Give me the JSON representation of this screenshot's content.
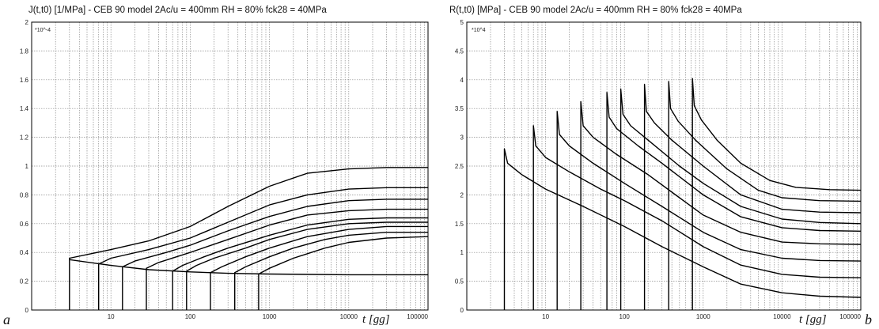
{
  "chart_data": [
    {
      "type": "line",
      "panel_label": "a",
      "title": "J(t,t0) [1/MPa] - CEB 90 model   2Ac/u = 400mm    RH = 80%    fck28 = 40MPa",
      "multiplier": "*10^-4",
      "xlabel": "t [gg]",
      "ylabel": "",
      "xscale": "log",
      "xlim": [
        1,
        100000
      ],
      "ylim": [
        0,
        2
      ],
      "xticks": [
        "10",
        "100",
        "1000",
        "10000",
        "100000"
      ],
      "yticks": [
        "0",
        "0.2",
        "0.4",
        "0.6",
        "0.8",
        "1",
        "1.2",
        "1.4",
        "1.6",
        "1.8",
        "2"
      ],
      "grid": true,
      "series": [
        {
          "t0": 3,
          "x": [
            3,
            10,
            30,
            100,
            300,
            1000,
            3000,
            10000,
            30000,
            100000
          ],
          "y": [
            0.36,
            0.42,
            0.48,
            0.58,
            0.72,
            0.86,
            0.95,
            0.98,
            0.99,
            0.99
          ]
        },
        {
          "t0": 7,
          "x": [
            7,
            10,
            30,
            100,
            300,
            1000,
            3000,
            10000,
            30000,
            100000
          ],
          "y": [
            0.32,
            0.36,
            0.42,
            0.5,
            0.61,
            0.73,
            0.8,
            0.84,
            0.85,
            0.85
          ]
        },
        {
          "t0": 14,
          "x": [
            14,
            20,
            50,
            100,
            300,
            1000,
            3000,
            10000,
            30000,
            100000
          ],
          "y": [
            0.3,
            0.34,
            0.4,
            0.45,
            0.55,
            0.65,
            0.72,
            0.76,
            0.77,
            0.77
          ]
        },
        {
          "t0": 28,
          "x": [
            28,
            40,
            100,
            300,
            1000,
            3000,
            10000,
            30000,
            100000
          ],
          "y": [
            0.29,
            0.33,
            0.4,
            0.49,
            0.59,
            0.66,
            0.69,
            0.7,
            0.7
          ]
        },
        {
          "t0": 60,
          "x": [
            60,
            80,
            150,
            300,
            1000,
            3000,
            10000,
            30000,
            100000
          ],
          "y": [
            0.27,
            0.31,
            0.37,
            0.43,
            0.52,
            0.59,
            0.63,
            0.64,
            0.64
          ]
        },
        {
          "t0": 90,
          "x": [
            90,
            120,
            200,
            500,
            1000,
            3000,
            10000,
            30000,
            100000
          ],
          "y": [
            0.27,
            0.31,
            0.36,
            0.43,
            0.49,
            0.56,
            0.6,
            0.61,
            0.61
          ]
        },
        {
          "t0": 180,
          "x": [
            180,
            250,
            500,
            1000,
            3000,
            10000,
            30000,
            100000
          ],
          "y": [
            0.26,
            0.3,
            0.37,
            0.43,
            0.51,
            0.56,
            0.58,
            0.58
          ]
        },
        {
          "t0": 365,
          "x": [
            365,
            500,
            1000,
            2000,
            5000,
            10000,
            30000,
            100000
          ],
          "y": [
            0.26,
            0.3,
            0.37,
            0.43,
            0.49,
            0.52,
            0.54,
            0.54
          ]
        },
        {
          "t0": 730,
          "x": [
            730,
            1000,
            2000,
            5000,
            10000,
            30000,
            100000
          ],
          "y": [
            0.25,
            0.29,
            0.36,
            0.43,
            0.47,
            0.5,
            0.51
          ]
        },
        {
          "name_hint": "instantaneous",
          "x": [
            3,
            10,
            30,
            100,
            300,
            1000,
            10000,
            100000
          ],
          "y": [
            0.35,
            0.31,
            0.28,
            0.265,
            0.255,
            0.25,
            0.245,
            0.245
          ]
        }
      ]
    },
    {
      "type": "line",
      "panel_label": "b",
      "title": "R(t,t0) [MPa]  - CEB 90 model    2Ac/u = 400mm     RH = 80%     fck28 = 40MPa",
      "multiplier": "*10^4",
      "xlabel": "t [gg]",
      "ylabel": "",
      "xscale": "log",
      "xlim": [
        1,
        100000
      ],
      "ylim": [
        0,
        5
      ],
      "xticks": [
        "10",
        "100",
        "1000",
        "10000",
        "100000"
      ],
      "yticks": [
        "0",
        "0.5",
        "1",
        "1.5",
        "2",
        "2.5",
        "3",
        "3.5",
        "4",
        "4.5",
        "5"
      ],
      "grid": true,
      "series": [
        {
          "t0": 3,
          "x": [
            3,
            3.3,
            5,
            10,
            30,
            100,
            300,
            1000,
            3000,
            10000,
            30000,
            100000
          ],
          "y": [
            2.8,
            2.55,
            2.35,
            2.1,
            1.8,
            1.45,
            1.1,
            0.75,
            0.45,
            0.3,
            0.24,
            0.22
          ]
        },
        {
          "t0": 7,
          "x": [
            7,
            7.5,
            10,
            20,
            50,
            100,
            300,
            1000,
            3000,
            10000,
            30000,
            100000
          ],
          "y": [
            3.2,
            2.85,
            2.65,
            2.4,
            2.1,
            1.9,
            1.55,
            1.1,
            0.78,
            0.62,
            0.57,
            0.56
          ]
        },
        {
          "t0": 14,
          "x": [
            14,
            15,
            20,
            40,
            100,
            300,
            1000,
            3000,
            10000,
            30000,
            100000
          ],
          "y": [
            3.45,
            3.05,
            2.85,
            2.55,
            2.2,
            1.8,
            1.35,
            1.05,
            0.9,
            0.86,
            0.85
          ]
        },
        {
          "t0": 28,
          "x": [
            28,
            30,
            40,
            80,
            200,
            500,
            1000,
            3000,
            10000,
            30000,
            100000
          ],
          "y": [
            3.62,
            3.2,
            3.0,
            2.7,
            2.35,
            1.95,
            1.65,
            1.35,
            1.18,
            1.15,
            1.14
          ]
        },
        {
          "t0": 60,
          "x": [
            60,
            64,
            80,
            150,
            300,
            1000,
            3000,
            10000,
            30000,
            100000
          ],
          "y": [
            3.78,
            3.35,
            3.15,
            2.85,
            2.55,
            2.0,
            1.62,
            1.43,
            1.38,
            1.37
          ]
        },
        {
          "t0": 90,
          "x": [
            90,
            96,
            120,
            200,
            500,
            1000,
            3000,
            10000,
            30000,
            100000
          ],
          "y": [
            3.84,
            3.4,
            3.2,
            2.95,
            2.5,
            2.2,
            1.8,
            1.58,
            1.52,
            1.5
          ]
        },
        {
          "t0": 180,
          "x": [
            180,
            190,
            240,
            400,
            1000,
            3000,
            10000,
            30000,
            100000
          ],
          "y": [
            3.92,
            3.45,
            3.25,
            2.95,
            2.5,
            2.0,
            1.75,
            1.7,
            1.69
          ]
        },
        {
          "t0": 365,
          "x": [
            365,
            385,
            480,
            800,
            2000,
            5000,
            10000,
            30000,
            100000
          ],
          "y": [
            3.97,
            3.5,
            3.28,
            2.95,
            2.45,
            2.08,
            1.95,
            1.9,
            1.89
          ]
        },
        {
          "t0": 730,
          "x": [
            730,
            770,
            950,
            1500,
            3000,
            7000,
            15000,
            40000,
            100000
          ],
          "y": [
            4.02,
            3.55,
            3.3,
            2.95,
            2.55,
            2.25,
            2.13,
            2.09,
            2.08
          ]
        }
      ]
    }
  ]
}
